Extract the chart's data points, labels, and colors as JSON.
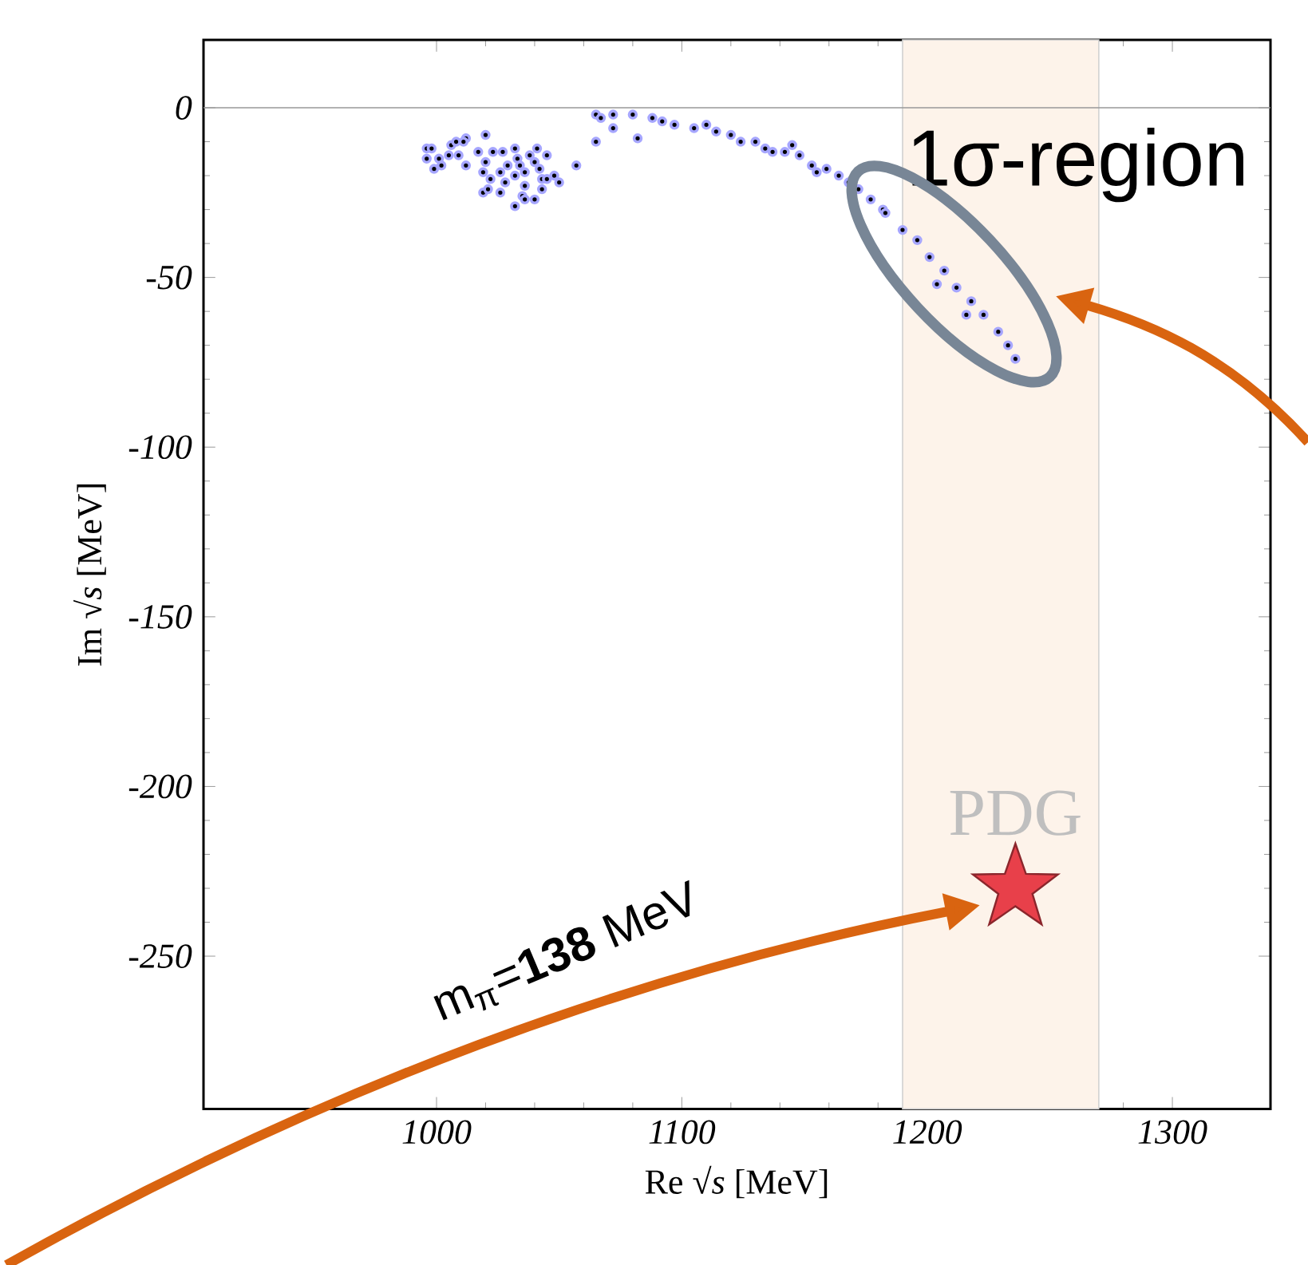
{
  "chart_data": {
    "type": "scatter",
    "xlabel": "Re √*s* [MeV]",
    "ylabel": "Im √*s* [MeV]",
    "xlim": [
      905,
      1340
    ],
    "ylim": [
      -295,
      20
    ],
    "xticks": [
      1000,
      1100,
      1200,
      1300
    ],
    "yticks": [
      0,
      -50,
      -100,
      -150,
      -200,
      -250
    ],
    "grid": false,
    "marker": "circle",
    "series": [
      {
        "color": "#000000",
        "x": [
          996,
          998,
          996,
          1001,
          999,
          1002,
          1006,
          1008,
          1012,
          1011,
          1009,
          1005,
          1012,
          1020,
          1017,
          1023,
          1020,
          1019,
          1022,
          1026,
          1027,
          1029,
          1032,
          1033,
          1034,
          1032,
          1036,
          1038,
          1041,
          1045,
          1040,
          1042,
          1043,
          1045,
          1048,
          1050,
          1036,
          1028,
          1026,
          1019,
          1021,
          1035,
          1036,
          1040,
          1032,
          1043,
          1057,
          1065,
          1065,
          1067,
          1072,
          1072,
          1080,
          1082,
          1088,
          1092,
          1097,
          1105,
          1110,
          1114,
          1120,
          1124,
          1130,
          1134,
          1137,
          1142,
          1145,
          1148,
          1153,
          1155,
          1159,
          1164,
          1168,
          1172,
          1177,
          1182,
          1183,
          1190,
          1196,
          1201,
          1204,
          1207,
          1212,
          1216,
          1218,
          1223,
          1229,
          1233,
          1236
        ],
        "values": [
          -12,
          -12,
          -15,
          -15,
          -18,
          -17,
          -11,
          -10,
          -9,
          -10,
          -14,
          -14,
          -17,
          -8,
          -13,
          -13,
          -16,
          -19,
          -21,
          -19,
          -13,
          -17,
          -12,
          -15,
          -17,
          -20,
          -19,
          -14,
          -12,
          -14,
          -16,
          -18,
          -21,
          -21,
          -20,
          -22,
          -23,
          -22,
          -25,
          -25,
          -24,
          -26,
          -27,
          -27,
          -29,
          -24,
          -17,
          -10,
          -2,
          -3,
          -2,
          -6,
          -2,
          -9,
          -3,
          -4,
          -5,
          -6,
          -5,
          -7,
          -8,
          -10,
          -10,
          -12,
          -13,
          -13,
          -11,
          -14,
          -17,
          -19,
          -18,
          -20,
          -22,
          -24,
          -27,
          -30,
          -31,
          -36,
          -39,
          -44,
          -52,
          -48,
          -53,
          -61,
          -57,
          -61,
          -66,
          -70,
          -74
        ]
      },
      {
        "name": "PDG",
        "type": "scatter",
        "marker": "star",
        "color": "#e8404a",
        "x": [
          1236
        ],
        "values": [
          -230
        ]
      }
    ],
    "ref_lines": [
      {
        "axis": "y",
        "value": 0,
        "color": "#999999"
      }
    ],
    "bands": [
      {
        "axis": "x",
        "from": 1190,
        "to": 1270,
        "color": "#fdf3ea"
      }
    ],
    "annotations": [
      "1σ-region",
      "m$_{π}$=**138** MeV"
    ]
  }
}
